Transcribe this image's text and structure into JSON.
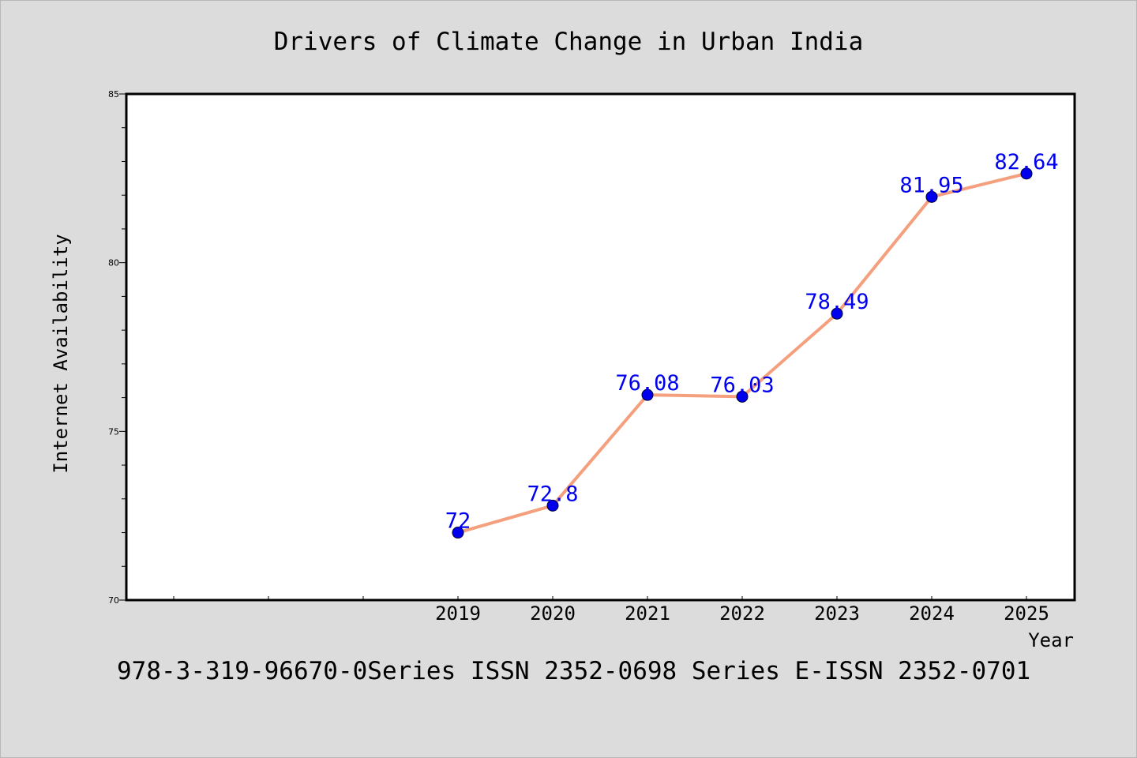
{
  "chart_data": {
    "type": "line",
    "title": "Drivers of Climate Change in Urban India",
    "xlabel": "Year",
    "ylabel": "Internet Availability",
    "x": [
      "2019",
      "2020",
      "2021",
      "2022",
      "2023",
      "2024",
      "2025"
    ],
    "series": [
      {
        "values": [
          72,
          72.8,
          76.08,
          76.03,
          78.49,
          81.95,
          82.64
        ]
      }
    ],
    "data_labels": [
      "72",
      "72.8",
      "76.08",
      "76.03",
      "78.49",
      "81.95",
      "82.64"
    ],
    "ylim": [
      70,
      85
    ],
    "yticks": [
      "70",
      "75",
      "80",
      "85"
    ],
    "grid": false,
    "legend": "none",
    "colors": {
      "line": "#f4a07e",
      "marker": "#0000ee",
      "label": "#0000ee",
      "plot_background": "#ffffff",
      "page_background": "#dcdcdc"
    }
  },
  "footnote": "978-3-319-96670-0Series ISSN 2352-0698 Series E-ISSN 2352-0701"
}
